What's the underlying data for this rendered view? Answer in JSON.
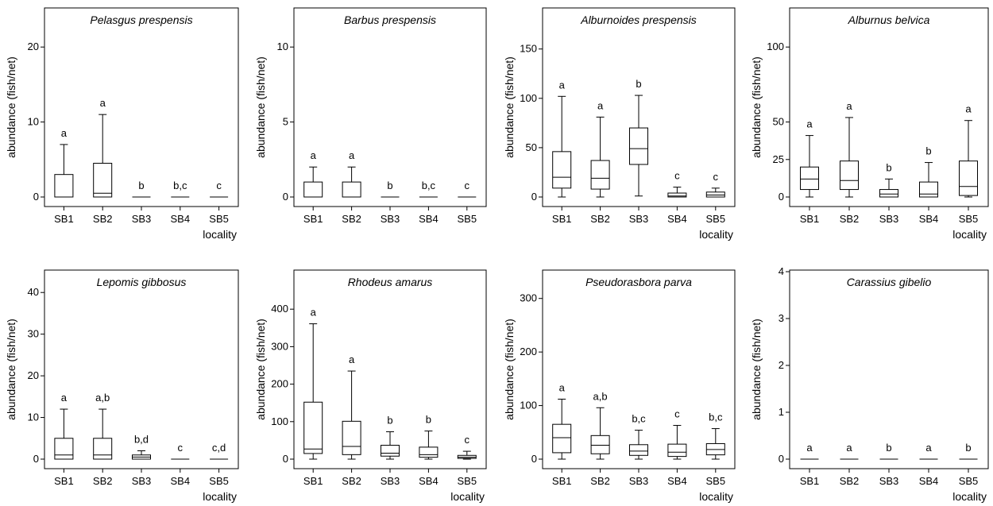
{
  "chart_data": [
    {
      "type": "box",
      "title": "Pelasgus prespensis",
      "xlabel": "locality",
      "ylabel": "abundance (fish/net)",
      "categories": [
        "SB1",
        "SB2",
        "SB3",
        "SB4",
        "SB5"
      ],
      "ylim": [
        0,
        25
      ],
      "yticks": [
        0,
        10,
        20
      ],
      "boxes": [
        {
          "min": 0,
          "q1": 0,
          "median": 0,
          "q3": 3,
          "max": 7
        },
        {
          "min": 0,
          "q1": 0,
          "median": 0.5,
          "q3": 4.5,
          "max": 11
        },
        {
          "min": 0,
          "q1": 0,
          "median": 0,
          "q3": 0,
          "max": 0
        },
        {
          "min": 0,
          "q1": 0,
          "median": 0,
          "q3": 0,
          "max": 0
        },
        {
          "min": 0,
          "q1": 0,
          "median": 0,
          "q3": 0,
          "max": 0
        }
      ],
      "letters": [
        "a",
        "a",
        "b",
        "b,c",
        "c"
      ]
    },
    {
      "type": "box",
      "title": "Barbus prespensis",
      "xlabel": "",
      "ylabel": "abundance (fish/net)",
      "categories": [
        "SB1",
        "SB2",
        "SB3",
        "SB4",
        "SB5"
      ],
      "ylim": [
        0,
        12.5
      ],
      "yticks": [
        0,
        5,
        10
      ],
      "boxes": [
        {
          "min": 0,
          "q1": 0,
          "median": 0,
          "q3": 1,
          "max": 2
        },
        {
          "min": 0,
          "q1": 0,
          "median": 0,
          "q3": 1,
          "max": 2
        },
        {
          "min": 0,
          "q1": 0,
          "median": 0,
          "q3": 0,
          "max": 0
        },
        {
          "min": 0,
          "q1": 0,
          "median": 0,
          "q3": 0,
          "max": 0
        },
        {
          "min": 0,
          "q1": 0,
          "median": 0,
          "q3": 0,
          "max": 0
        }
      ],
      "letters": [
        "a",
        "a",
        "b",
        "b,c",
        "c"
      ]
    },
    {
      "type": "box",
      "title": "Alburnoides prespensis",
      "xlabel": "locality",
      "ylabel": "abundance (fish/net)",
      "categories": [
        "SB1",
        "SB2",
        "SB3",
        "SB4",
        "SB5"
      ],
      "ylim": [
        0,
        190
      ],
      "yticks": [
        0,
        50,
        100,
        150
      ],
      "boxes": [
        {
          "min": 0,
          "q1": 9,
          "median": 20,
          "q3": 46,
          "max": 102
        },
        {
          "min": 0,
          "q1": 8,
          "median": 19,
          "q3": 37,
          "max": 81
        },
        {
          "min": 1,
          "q1": 33,
          "median": 49,
          "q3": 70,
          "max": 103
        },
        {
          "min": 0,
          "q1": 0,
          "median": 1,
          "q3": 4,
          "max": 10
        },
        {
          "min": 0,
          "q1": 0,
          "median": 2,
          "q3": 5,
          "max": 9
        }
      ],
      "letters": [
        "a",
        "a",
        "b",
        "c",
        "c"
      ]
    },
    {
      "type": "box",
      "title": "Alburnus belvica",
      "xlabel": "locality",
      "ylabel": "abundance (fish/net)",
      "categories": [
        "SB1",
        "SB2",
        "SB3",
        "SB4",
        "SB5"
      ],
      "ylim": [
        0,
        125
      ],
      "yticks": [
        0,
        25,
        50,
        100
      ],
      "boxes": [
        {
          "min": 0,
          "q1": 5,
          "median": 12,
          "q3": 20,
          "max": 41
        },
        {
          "min": 0,
          "q1": 5,
          "median": 11,
          "q3": 24,
          "max": 53
        },
        {
          "min": 0,
          "q1": 0,
          "median": 2,
          "q3": 5,
          "max": 12
        },
        {
          "min": 0,
          "q1": 0,
          "median": 2,
          "q3": 10,
          "max": 23
        },
        {
          "min": 0,
          "q1": 1,
          "median": 7,
          "q3": 24,
          "max": 51
        }
      ],
      "letters": [
        "a",
        "a",
        "b",
        "b",
        "a"
      ]
    },
    {
      "type": "box",
      "title": "Lepomis gibbosus",
      "xlabel": "locality",
      "ylabel": "abundance (fish/net)",
      "categories": [
        "SB1",
        "SB2",
        "SB3",
        "SB4",
        "SB5"
      ],
      "ylim": [
        0,
        45
      ],
      "yticks": [
        0,
        10,
        20,
        30,
        40
      ],
      "boxes": [
        {
          "min": 0,
          "q1": 0,
          "median": 1,
          "q3": 5,
          "max": 12
        },
        {
          "min": 0,
          "q1": 0,
          "median": 1,
          "q3": 5,
          "max": 12
        },
        {
          "min": 0,
          "q1": 0,
          "median": 0.5,
          "q3": 1,
          "max": 2
        },
        {
          "min": 0,
          "q1": 0,
          "median": 0,
          "q3": 0,
          "max": 0
        },
        {
          "min": 0,
          "q1": 0,
          "median": 0,
          "q3": 0,
          "max": 0
        }
      ],
      "letters": [
        "a",
        "a,b",
        "b,d",
        "c",
        "c,d"
      ]
    },
    {
      "type": "box",
      "title": "Rhodeus amarus",
      "xlabel": "locality",
      "ylabel": "abundance (fish/net)",
      "categories": [
        "SB1",
        "SB2",
        "SB3",
        "SB4",
        "SB5"
      ],
      "ylim": [
        0,
        500
      ],
      "yticks": [
        0,
        100,
        200,
        300,
        400
      ],
      "boxes": [
        {
          "min": 0,
          "q1": 15,
          "median": 27,
          "q3": 152,
          "max": 361
        },
        {
          "min": 0,
          "q1": 12,
          "median": 34,
          "q3": 101,
          "max": 235
        },
        {
          "min": 0,
          "q1": 8,
          "median": 16,
          "q3": 37,
          "max": 73
        },
        {
          "min": 0,
          "q1": 5,
          "median": 12,
          "q3": 32,
          "max": 75
        },
        {
          "min": 0,
          "q1": 2,
          "median": 5,
          "q3": 10,
          "max": 21
        }
      ],
      "letters": [
        "a",
        "a",
        "b",
        "b",
        "c"
      ]
    },
    {
      "type": "box",
      "title": "Pseudorasbora parva",
      "xlabel": "locality",
      "ylabel": "abundance (fish/net)",
      "categories": [
        "SB1",
        "SB2",
        "SB3",
        "SB4",
        "SB5"
      ],
      "ylim": [
        0,
        350
      ],
      "yticks": [
        0,
        100,
        200,
        300
      ],
      "boxes": [
        {
          "min": 0,
          "q1": 12,
          "median": 40,
          "q3": 65,
          "max": 112
        },
        {
          "min": 0,
          "q1": 10,
          "median": 26,
          "q3": 44,
          "max": 96
        },
        {
          "min": 0,
          "q1": 7,
          "median": 15,
          "q3": 27,
          "max": 54
        },
        {
          "min": 0,
          "q1": 5,
          "median": 13,
          "q3": 28,
          "max": 63
        },
        {
          "min": 0,
          "q1": 8,
          "median": 18,
          "q3": 29,
          "max": 57
        }
      ],
      "letters": [
        "a",
        "a,b",
        "b,c",
        "c",
        "b,c"
      ]
    },
    {
      "type": "box",
      "title": "Carassius gibelio",
      "xlabel": "locality",
      "ylabel": "abundance (fish/net)",
      "categories": [
        "SB1",
        "SB2",
        "SB3",
        "SB4",
        "SB5"
      ],
      "ylim": [
        0,
        4
      ],
      "yticks": [
        0,
        1,
        2,
        3,
        4
      ],
      "boxes": [
        {
          "min": 0,
          "q1": 0,
          "median": 0,
          "q3": 0,
          "max": 0
        },
        {
          "min": 0,
          "q1": 0,
          "median": 0,
          "q3": 0,
          "max": 0
        },
        {
          "min": 0,
          "q1": 0,
          "median": 0,
          "q3": 0,
          "max": 0
        },
        {
          "min": 0,
          "q1": 0,
          "median": 0,
          "q3": 0,
          "max": 0
        },
        {
          "min": 0,
          "q1": 0,
          "median": 0,
          "q3": 0,
          "max": 0
        }
      ],
      "letters": [
        "a",
        "a",
        "b",
        "a",
        "b"
      ]
    }
  ]
}
